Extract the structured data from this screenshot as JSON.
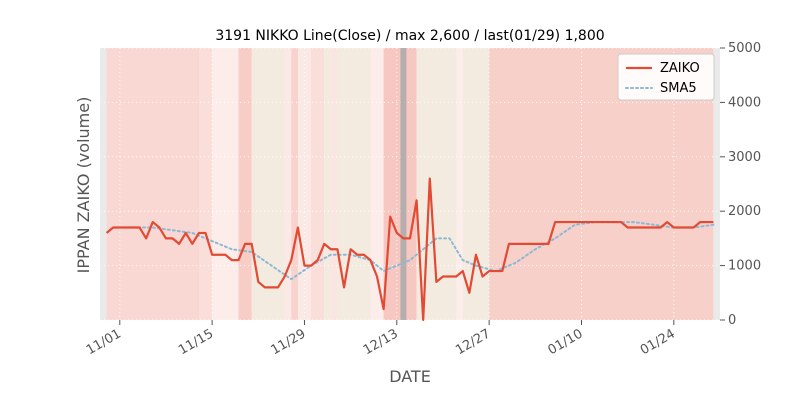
{
  "chart_data": {
    "type": "line",
    "title": "3191 NIKKO Line(Close) / max 2,600 / last(01/29) 1,800",
    "xlabel": "DATE",
    "ylabel": "IPPAN ZAIKO (volume)",
    "y_axis_side": "right",
    "ylim": [
      0,
      5000
    ],
    "yticks": [
      0,
      1000,
      2000,
      3000,
      4000,
      5000
    ],
    "ytick_labels": [
      "0",
      "1000",
      "2000",
      "3000",
      "4000",
      "5000"
    ],
    "x_range": [
      "2021-10-29",
      "2022-01-31"
    ],
    "xticks": [
      "2021-11-01",
      "2021-11-15",
      "2021-11-29",
      "2021-12-13",
      "2021-12-27",
      "2022-01-10",
      "2022-01-24"
    ],
    "xtick_labels": [
      "11/01",
      "11/15",
      "11/29",
      "12/13",
      "12/27",
      "01/10",
      "01/24"
    ],
    "grid": true,
    "legend_position": "top-right",
    "colors": {
      "zaiko": "#e24a33",
      "sma5": "#8eb9d4",
      "highlight": "#a9a9a9"
    },
    "highlight_date": "2021-12-14",
    "series": [
      {
        "name": "ZAIKO",
        "style": "solid",
        "dates": [
          "2021-10-30",
          "2021-10-31",
          "2021-11-01",
          "2021-11-02",
          "2021-11-03",
          "2021-11-04",
          "2021-11-05",
          "2021-11-06",
          "2021-11-07",
          "2021-11-08",
          "2021-11-09",
          "2021-11-10",
          "2021-11-11",
          "2021-11-12",
          "2021-11-13",
          "2021-11-14",
          "2021-11-15",
          "2021-11-16",
          "2021-11-17",
          "2021-11-18",
          "2021-11-19",
          "2021-11-20",
          "2021-11-21",
          "2021-11-22",
          "2021-11-23",
          "2021-11-24",
          "2021-11-25",
          "2021-11-26",
          "2021-11-27",
          "2021-11-28",
          "2021-11-29",
          "2021-11-30",
          "2021-12-01",
          "2021-12-02",
          "2021-12-03",
          "2021-12-04",
          "2021-12-05",
          "2021-12-06",
          "2021-12-07",
          "2021-12-08",
          "2021-12-09",
          "2021-12-10",
          "2021-12-11",
          "2021-12-12",
          "2021-12-13",
          "2021-12-14",
          "2021-12-15",
          "2021-12-16",
          "2021-12-17",
          "2021-12-18",
          "2021-12-19",
          "2021-12-20",
          "2021-12-21",
          "2021-12-22",
          "2021-12-23",
          "2021-12-24",
          "2021-12-25",
          "2021-12-26",
          "2021-12-27",
          "2021-12-28",
          "2021-12-29",
          "2021-12-30",
          "2021-12-31",
          "2022-01-01",
          "2022-01-02",
          "2022-01-03",
          "2022-01-04",
          "2022-01-05",
          "2022-01-06",
          "2022-01-07",
          "2022-01-08",
          "2022-01-09",
          "2022-01-10",
          "2022-01-11",
          "2022-01-12",
          "2022-01-13",
          "2022-01-14",
          "2022-01-15",
          "2022-01-16",
          "2022-01-17",
          "2022-01-18",
          "2022-01-19",
          "2022-01-20",
          "2022-01-21",
          "2022-01-22",
          "2022-01-23",
          "2022-01-24",
          "2022-01-25",
          "2022-01-26",
          "2022-01-27",
          "2022-01-28",
          "2022-01-29",
          "2022-01-30"
        ],
        "values": [
          1600,
          1700,
          1700,
          1700,
          1700,
          1700,
          1500,
          1800,
          1700,
          1500,
          1500,
          1400,
          1600,
          1400,
          1600,
          1600,
          1200,
          1200,
          1200,
          1100,
          1100,
          1400,
          1400,
          700,
          600,
          600,
          600,
          800,
          1100,
          1700,
          1000,
          1000,
          1100,
          1400,
          1300,
          1300,
          600,
          1300,
          1200,
          1200,
          1100,
          800,
          200,
          1900,
          1600,
          1500,
          1500,
          2200,
          0,
          2600,
          700,
          800,
          800,
          800,
          900,
          500,
          1200,
          800,
          900,
          900,
          900,
          1400,
          1400,
          1400,
          1400,
          1400,
          1400,
          1400,
          1800,
          1800,
          1800,
          1800,
          1800,
          1800,
          1800,
          1800,
          1800,
          1800,
          1800,
          1700,
          1700,
          1700,
          1700,
          1700,
          1700,
          1800,
          1700,
          1700,
          1700,
          1700,
          1800,
          1800,
          1800
        ]
      },
      {
        "name": "SMA5",
        "style": "dotted",
        "dates": [
          "2021-11-03",
          "2021-11-06",
          "2021-11-09",
          "2021-11-12",
          "2021-11-15",
          "2021-11-18",
          "2021-11-21",
          "2021-11-24",
          "2021-11-27",
          "2021-11-30",
          "2021-12-03",
          "2021-12-06",
          "2021-12-09",
          "2021-12-11",
          "2021-12-13",
          "2021-12-15",
          "2021-12-17",
          "2021-12-19",
          "2021-12-21",
          "2021-12-23",
          "2021-12-25",
          "2021-12-28",
          "2021-12-31",
          "2022-01-03",
          "2022-01-06",
          "2022-01-09",
          "2022-01-12",
          "2022-01-15",
          "2022-01-18",
          "2022-01-21",
          "2022-01-24",
          "2022-01-27",
          "2022-01-30"
        ],
        "values": [
          1700,
          1700,
          1650,
          1600,
          1450,
          1300,
          1250,
          1000,
          750,
          1000,
          1200,
          1200,
          1100,
          900,
          1000,
          1100,
          1300,
          1500,
          1500,
          1100,
          1000,
          900,
          1050,
          1300,
          1500,
          1750,
          1800,
          1800,
          1800,
          1750,
          1700,
          1700,
          1750
        ]
      }
    ],
    "background_bands": [
      {
        "start": "2021-10-29",
        "end": "2021-10-30",
        "color": "#dcdcdc",
        "opacity": 0.6
      },
      {
        "start": "2021-10-30",
        "end": "2021-11-13",
        "color": "#e24a33",
        "opacity": 0.22
      },
      {
        "start": "2021-11-13",
        "end": "2021-11-15",
        "color": "#e24a33",
        "opacity": 0.18
      },
      {
        "start": "2021-11-15",
        "end": "2021-11-19",
        "color": "#e24a33",
        "opacity": 0.1
      },
      {
        "start": "2021-11-19",
        "end": "2021-11-21",
        "color": "#e24a33",
        "opacity": 0.28
      },
      {
        "start": "2021-11-21",
        "end": "2021-11-26",
        "color": "#f0e6d8",
        "opacity": 0.8
      },
      {
        "start": "2021-11-26",
        "end": "2021-11-27",
        "color": "#e24a33",
        "opacity": 0.12
      },
      {
        "start": "2021-11-27",
        "end": "2021-11-28",
        "color": "#e24a33",
        "opacity": 0.25
      },
      {
        "start": "2021-11-28",
        "end": "2021-11-30",
        "color": "#e24a33",
        "opacity": 0.12
      },
      {
        "start": "2021-11-30",
        "end": "2021-12-02",
        "color": "#e24a33",
        "opacity": 0.18
      },
      {
        "start": "2021-12-02",
        "end": "2021-12-03",
        "color": "#f0e6d8",
        "opacity": 0.8
      },
      {
        "start": "2021-12-03",
        "end": "2021-12-04",
        "color": "#e24a33",
        "opacity": 0.14
      },
      {
        "start": "2021-12-04",
        "end": "2021-12-09",
        "color": "#f0e6d8",
        "opacity": 0.8
      },
      {
        "start": "2021-12-09",
        "end": "2021-12-11",
        "color": "#e24a33",
        "opacity": 0.1
      },
      {
        "start": "2021-12-11",
        "end": "2021-12-16",
        "color": "#e24a33",
        "opacity": 0.3
      },
      {
        "start": "2021-12-16",
        "end": "2021-12-22",
        "color": "#f0e6d8",
        "opacity": 0.8
      },
      {
        "start": "2021-12-22",
        "end": "2021-12-23",
        "color": "#e24a33",
        "opacity": 0.1
      },
      {
        "start": "2021-12-23",
        "end": "2021-12-27",
        "color": "#f0e6d8",
        "opacity": 0.8
      },
      {
        "start": "2021-12-27",
        "end": "2022-01-30",
        "color": "#e24a33",
        "opacity": 0.26
      },
      {
        "start": "2022-01-30",
        "end": "2022-01-31",
        "color": "#dcdcdc",
        "opacity": 0.6
      }
    ]
  }
}
